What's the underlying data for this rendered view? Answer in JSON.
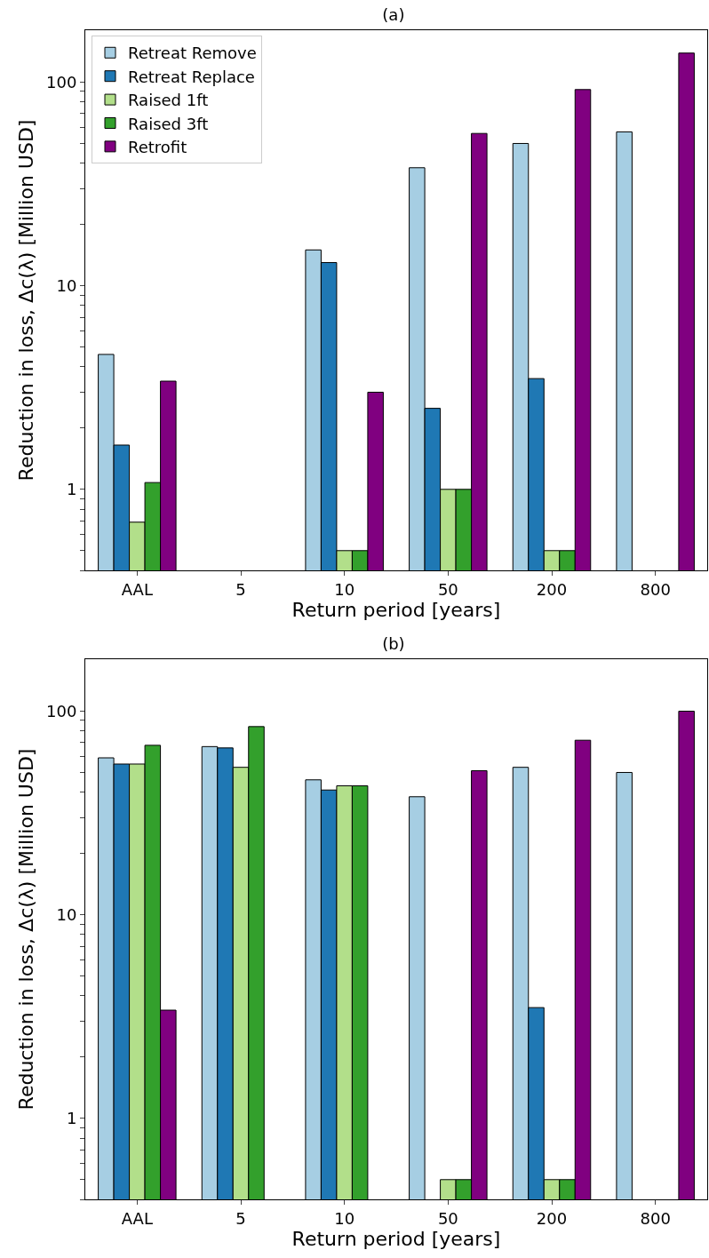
{
  "chart_data": [
    {
      "type": "bar",
      "title": "(a)",
      "xlabel": "Return period [years]",
      "ylabel": "Reduction in loss, Δc(λ) [Million USD]",
      "categories": [
        "AAL",
        "5",
        "10",
        "50",
        "200",
        "800"
      ],
      "log": "y",
      "ylim": [
        0.4,
        180
      ],
      "yticks": [
        {
          "value": 0.4,
          "label": null
        },
        {
          "value": 0.5,
          "label": null
        },
        {
          "value": 0.6,
          "label": null
        },
        {
          "value": 0.7,
          "label": null
        },
        {
          "value": 0.8,
          "label": null
        },
        {
          "value": 0.9,
          "label": null
        },
        1,
        {
          "value": 2,
          "label": null
        },
        {
          "value": 3,
          "label": null
        },
        {
          "value": 4,
          "label": null
        },
        {
          "value": 5,
          "label": null
        },
        {
          "value": 6,
          "label": null
        },
        {
          "value": 7,
          "label": null
        },
        {
          "value": 8,
          "label": null
        },
        {
          "value": 9,
          "label": null
        },
        10,
        {
          "value": 20,
          "label": null
        },
        {
          "value": 30,
          "label": null
        },
        {
          "value": 40,
          "label": null
        },
        {
          "value": 50,
          "label": null
        },
        {
          "value": 60,
          "label": null
        },
        {
          "value": 70,
          "label": null
        },
        {
          "value": 80,
          "label": null
        },
        {
          "value": 90,
          "label": null
        },
        100
      ],
      "grid": false,
      "legend": "top left",
      "series": [
        {
          "name": "Retreat Remove",
          "color": "#a6cee3",
          "values": [
            4.6,
            null,
            15,
            38,
            50,
            57
          ]
        },
        {
          "name": "Retreat Replace",
          "color": "#1f78b4",
          "values": [
            1.65,
            null,
            13,
            2.5,
            3.5,
            null
          ]
        },
        {
          "name": "Raised 1ft",
          "color": "#b2df8a",
          "values": [
            0.69,
            null,
            0.5,
            1,
            0.5,
            null
          ]
        },
        {
          "name": "Raised 3ft",
          "color": "#33a02c",
          "values": [
            1.08,
            null,
            0.5,
            1,
            0.5,
            null
          ]
        },
        {
          "name": "Retrofit",
          "color": "#800080",
          "values": [
            3.4,
            null,
            3,
            56,
            92,
            139
          ]
        }
      ]
    },
    {
      "type": "bar",
      "title": "(b)",
      "xlabel": "Return period [years]",
      "ylabel": "Reduction in loss, Δc(λ) [Million USD]",
      "categories": [
        "AAL",
        "5",
        "10",
        "50",
        "200",
        "800"
      ],
      "log": "y",
      "ylim": [
        0.4,
        180
      ],
      "yticks": [
        {
          "value": 0.4,
          "label": null
        },
        {
          "value": 0.5,
          "label": null
        },
        {
          "value": 0.6,
          "label": null
        },
        {
          "value": 0.7,
          "label": null
        },
        {
          "value": 0.8,
          "label": null
        },
        {
          "value": 0.9,
          "label": null
        },
        1,
        {
          "value": 2,
          "label": null
        },
        {
          "value": 3,
          "label": null
        },
        {
          "value": 4,
          "label": null
        },
        {
          "value": 5,
          "label": null
        },
        {
          "value": 6,
          "label": null
        },
        {
          "value": 7,
          "label": null
        },
        {
          "value": 8,
          "label": null
        },
        {
          "value": 9,
          "label": null
        },
        10,
        {
          "value": 20,
          "label": null
        },
        {
          "value": 30,
          "label": null
        },
        {
          "value": 40,
          "label": null
        },
        {
          "value": 50,
          "label": null
        },
        {
          "value": 60,
          "label": null
        },
        {
          "value": 70,
          "label": null
        },
        {
          "value": 80,
          "label": null
        },
        {
          "value": 90,
          "label": null
        },
        100
      ],
      "grid": false,
      "series": [
        {
          "color": "#a6cee3",
          "values": [
            59,
            67,
            46,
            38,
            53,
            50
          ]
        },
        {
          "color": "#1f78b4",
          "values": [
            55,
            66,
            41,
            null,
            3.5,
            null
          ]
        },
        {
          "color": "#b2df8a",
          "values": [
            55,
            53,
            43,
            0.5,
            0.5,
            null
          ]
        },
        {
          "color": "#33a02c",
          "values": [
            68,
            84,
            43,
            0.5,
            0.5,
            null
          ]
        },
        {
          "color": "#800080",
          "values": [
            3.4,
            null,
            null,
            51,
            72,
            100
          ]
        }
      ]
    }
  ]
}
